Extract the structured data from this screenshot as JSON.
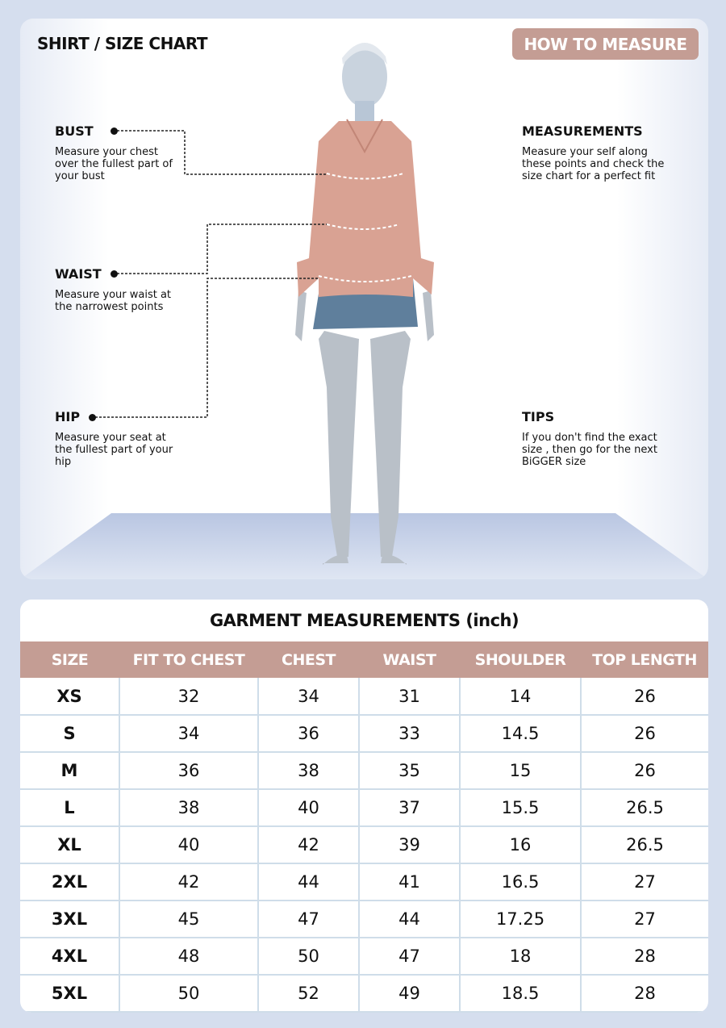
{
  "header": {
    "title": "SHIRT / SIZE CHART",
    "how_to_measure": "HOW TO MEASURE"
  },
  "guide": {
    "bust": {
      "label": "BUST",
      "text": "Measure your chest over the fullest part of your bust"
    },
    "waist": {
      "label": "WAIST",
      "text": "Measure your waist at the narrowest points"
    },
    "hip": {
      "label": "HIP",
      "text": "Measure your seat at the fullest part of your hip"
    },
    "measurements": {
      "label": "MEASUREMENTS",
      "text": "Measure your self along these points and check the size chart for a perfect fit"
    },
    "tips": {
      "label": "TIPS",
      "text": "If you don't find the exact size , then go for the next BiGGER size"
    }
  },
  "colors": {
    "accent": "#c49d94",
    "background": "#d5deee",
    "shirt": "#d9a293",
    "skirt": "#5f7f9c"
  },
  "table": {
    "title": "GARMENT MEASUREMENTS (inch)",
    "columns": [
      "SIZE",
      "FIT TO CHEST",
      "CHEST",
      "WAIST",
      "SHOULDER",
      "TOP LENGTH"
    ],
    "rows": [
      [
        "XS",
        "32",
        "34",
        "31",
        "14",
        "26"
      ],
      [
        "S",
        "34",
        "36",
        "33",
        "14.5",
        "26"
      ],
      [
        "M",
        "36",
        "38",
        "35",
        "15",
        "26"
      ],
      [
        "L",
        "38",
        "40",
        "37",
        "15.5",
        "26.5"
      ],
      [
        "XL",
        "40",
        "42",
        "39",
        "16",
        "26.5"
      ],
      [
        "2XL",
        "42",
        "44",
        "41",
        "16.5",
        "27"
      ],
      [
        "3XL",
        "45",
        "47",
        "44",
        "17.25",
        "27"
      ],
      [
        "4XL",
        "48",
        "50",
        "47",
        "18",
        "28"
      ],
      [
        "5XL",
        "50",
        "52",
        "49",
        "18.5",
        "28"
      ]
    ]
  }
}
